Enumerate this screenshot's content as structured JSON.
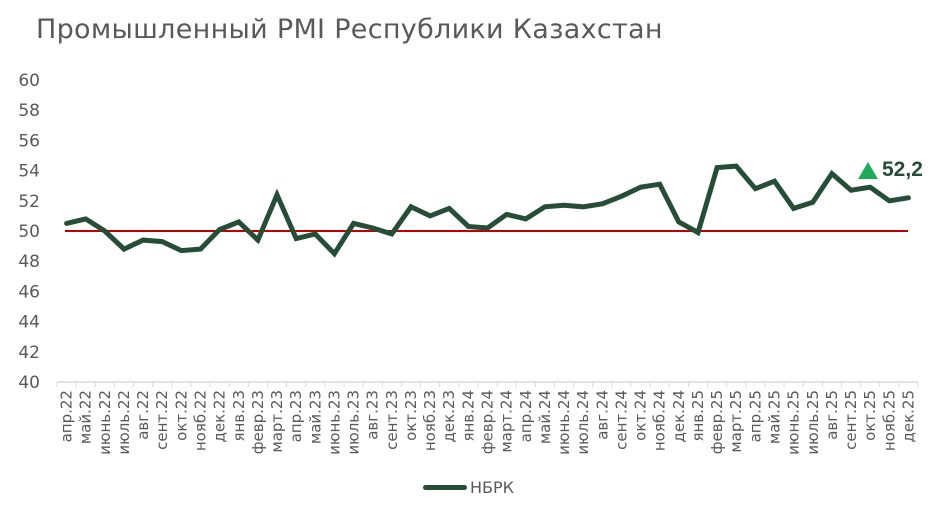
{
  "chart_data": {
    "type": "line",
    "title": "Промышленный PMI Республики Казахстан",
    "xlabel": "",
    "ylabel": "",
    "ylim": [
      40,
      60
    ],
    "yticks": [
      40,
      42,
      44,
      46,
      48,
      50,
      52,
      54,
      56,
      58,
      60
    ],
    "grid": false,
    "legend_position": "bottom",
    "reference_line": {
      "value": 50,
      "color": "#c00000"
    },
    "categories": [
      "апр.22",
      "май.22",
      "июнь.22",
      "июль.22",
      "авг.22",
      "сент.22",
      "окт.22",
      "нояб.22",
      "дек.22",
      "янв.23",
      "февр.23",
      "март.23",
      "апр.23",
      "май.23",
      "июнь.23",
      "июль.23",
      "авг.23",
      "сент.23",
      "окт.23",
      "нояб.23",
      "дек.23",
      "янв.24",
      "февр.24",
      "март.24",
      "апр.24",
      "май.24",
      "июнь.24",
      "июль.24",
      "авг.24",
      "сент.24",
      "окт.24",
      "нояб.24",
      "дек.24",
      "янв.25",
      "февр.25",
      "март.25",
      "апр.25",
      "май.25",
      "июнь.25",
      "июль.25",
      "авг.25",
      "сент.25",
      "окт.25",
      "нояб.25",
      "дек.25"
    ],
    "series": [
      {
        "name": "НБРК",
        "color": "#264d38",
        "values": [
          50.5,
          50.8,
          50.0,
          48.8,
          49.4,
          49.3,
          48.7,
          48.8,
          50.1,
          50.6,
          49.4,
          52.4,
          49.5,
          49.8,
          48.5,
          50.5,
          50.2,
          49.8,
          51.6,
          51.0,
          51.5,
          50.3,
          50.2,
          51.1,
          50.8,
          51.6,
          51.7,
          51.6,
          51.8,
          52.3,
          52.9,
          53.1,
          50.6,
          49.9,
          54.2,
          54.3,
          52.8,
          53.3,
          51.5,
          51.9,
          53.8,
          52.7,
          52.9,
          52.0,
          52.2
        ]
      }
    ],
    "annotations": [
      {
        "text": "52,2",
        "marker": "up-triangle",
        "marker_color": "#1faa59",
        "target": "дек.25"
      }
    ]
  },
  "legend": {
    "label": "НБРК"
  },
  "callout": {
    "value": "52,2"
  }
}
